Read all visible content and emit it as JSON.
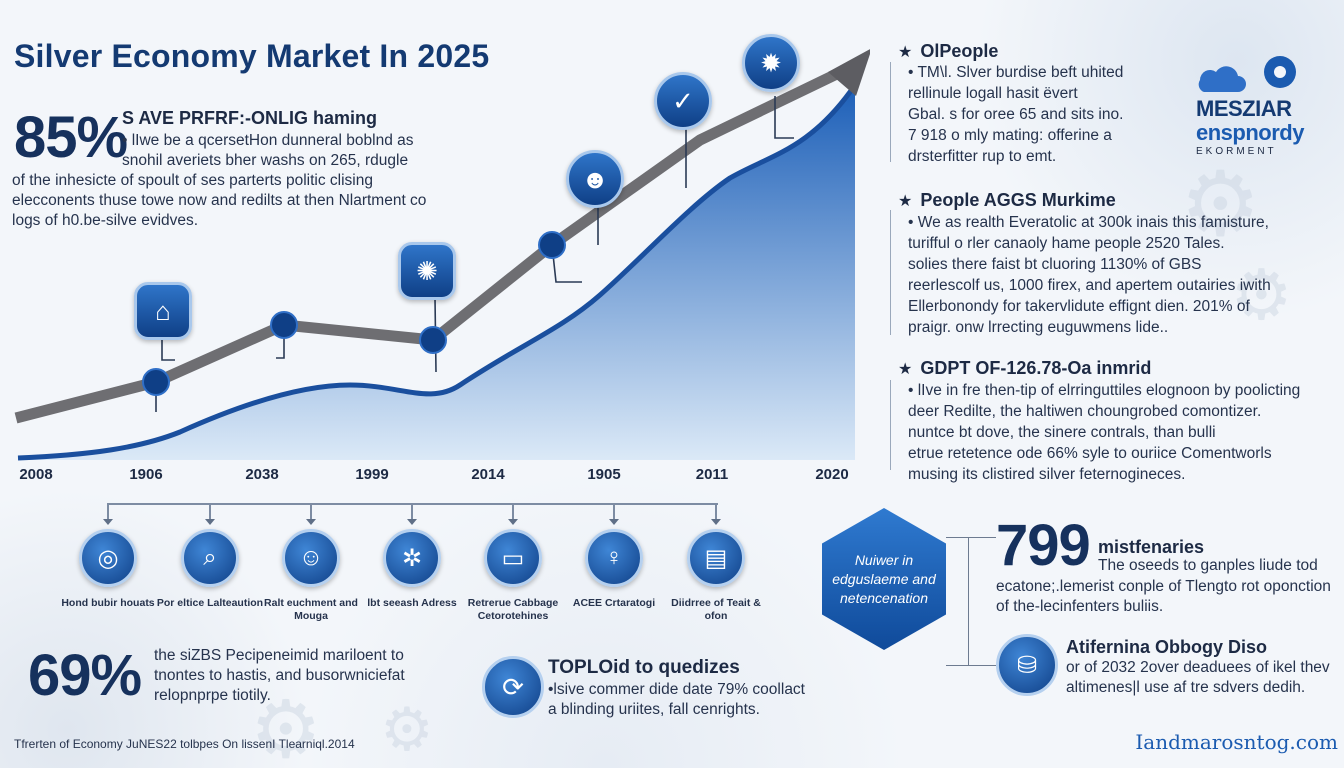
{
  "title": "Silver Economy Market In 2025",
  "top_stat": {
    "value": "85%",
    "headline": "S AVE PRFRF:-ONLIG haming",
    "body_indent": "• lIwe be a qcersetHon dunneral boblnd as snohil averiets bher washs on 265, rdugle",
    "body_wide": "of the inhesicte of spoult of ses parterts politic clising elecconents thuse towe now and redilts at then Nlartment co logs of h0.be-silve evidves."
  },
  "chart": {
    "years": [
      "2008",
      "1906",
      "2038",
      "1999",
      "2014",
      "1905",
      "2011",
      "2020"
    ],
    "colors": {
      "area_top": "#1c5fb8",
      "area_bottom": "#dbe9f7",
      "line": "#1a4f9e",
      "gray_line": "#6e6e72",
      "node": "#0f3f86"
    },
    "icons": [
      "house-icon",
      "tree-icon",
      "people-icon",
      "chart-check-icon",
      "gear-globe-icon"
    ]
  },
  "right_blocks": [
    {
      "head": "OlPeople",
      "lines": [
        "• TM\\l. Slver burdise beft uhited",
        "rellinule logall hasit ëvert",
        "Gbal. s for oree 65 and sits ino.",
        "7 918 o mly mating: offerine a",
        "drsterfitter rup to emt."
      ]
    },
    {
      "head": "People AGGS Murkime",
      "lines": [
        "• We as realth Everatolic at 300k inais this famisture,",
        "turifful o rler canaoly hame people 2520 Tales.",
        "solies there faist bt cluoring 1130% of GBS",
        "reerlescolf us, 1000 firex, and apertem outairies iwith",
        "Ellerbonondy for takervlidute effignt dien. 201% of",
        "praigr. onw lrrecting euguwmens lide.."
      ]
    },
    {
      "head": "GDPT OF-126.78-Oa inmrid",
      "lines": [
        "• lIve in fre then-tip of elrringuttiles elognoon by poolicting",
        "deer Redilte, the haltiwen choungrobed comontizer.",
        "nuntce bt dove, the sinere contrals, than bulli",
        "etrue retetence ode 66% syle to ouriice Comentworls",
        "musing its clistired silver feternogineces."
      ]
    }
  ],
  "logo": {
    "line1": "MESZIAR",
    "line2": "enspnordy",
    "line3": "EKORMENT",
    "icons": [
      "cloud-icon",
      "gear-icon"
    ]
  },
  "timeline": [
    {
      "icon": "globe-icon",
      "label": "Hond bubir houats"
    },
    {
      "icon": "search-icon",
      "label": "Por eltice Lalteaution"
    },
    {
      "icon": "person-icon",
      "label": "Ralt euchment and Mouga"
    },
    {
      "icon": "network-icon",
      "label": "lbt seeash Adress"
    },
    {
      "icon": "card-icon",
      "label": "Retrerue Cabbage Cetorotehines"
    },
    {
      "icon": "care-icon",
      "label": "ACEE Crtaratogi"
    },
    {
      "icon": "dashboard-icon",
      "label": "Diidrree of Teait & ofon"
    }
  ],
  "bottom_stat": {
    "value": "69%",
    "body": "the siZBS Pecipeneimid mariloent to tnontes to hastis, and busorwniciefat relopnprpe tiotily."
  },
  "top_block": {
    "head": "TOPLOid to quedizes",
    "line1": "•lsive commer dide date 79% coollact",
    "line2": "a blinding uriites, fall cenrights."
  },
  "hexagon": {
    "text": "Nuiwer in edguslaeme and netencenation"
  },
  "stat799": {
    "value": "799",
    "head": "mistfenaries",
    "line1": "The oseeds to ganples liude tod",
    "line2": "ecatone;.lemerist conple of Tlengto rot oponction of the-lecinfenters buliis."
  },
  "affirmation": {
    "head": "Atifernina Obbogy Diso",
    "line1": "or of 2032 2over deaduees of ikel thev",
    "line2": "altimenes|l use af tre sdvers dedih."
  },
  "footer": {
    "left": "Tfrerten of Economy JuNES22 tolbpes On lissenI Tlearniql.2014",
    "right": "Iandmarosntog.com"
  }
}
